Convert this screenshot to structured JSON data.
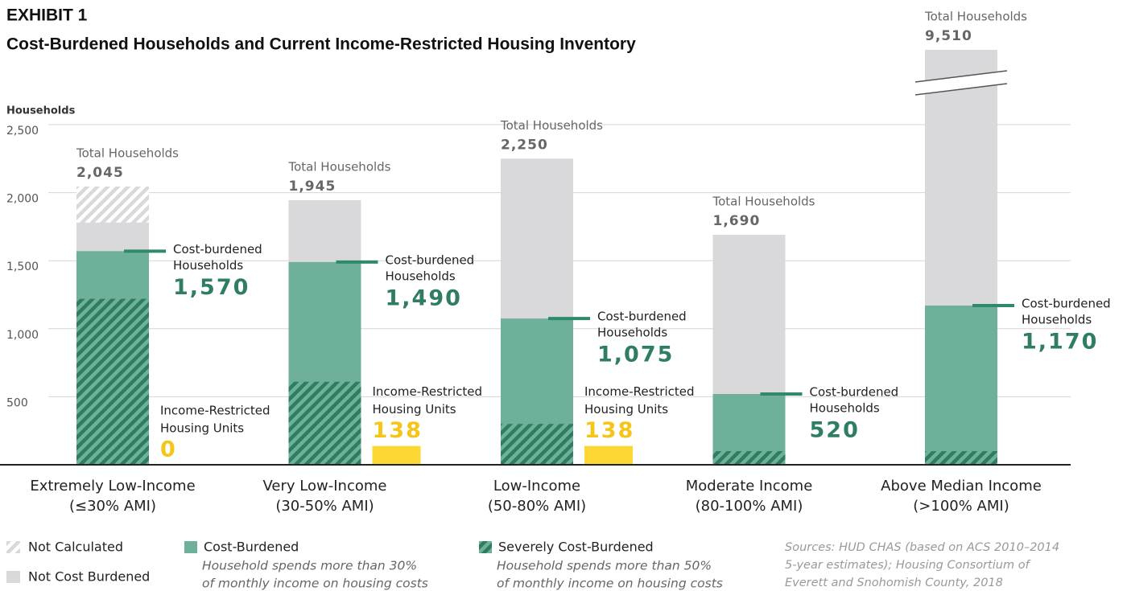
{
  "chart_data": {
    "type": "bar",
    "exhibit": "EXHIBIT 1",
    "title": "Cost-Burdened Households and Current Income-Restricted Housing Inventory",
    "y_label": "Households",
    "categories": [
      "Extremely Low-Income",
      "Very Low-Income",
      "Low-Income",
      "Moderate Income",
      "Above Median Income"
    ],
    "category_notes": [
      "(≤30% AMI)",
      "(30-50% AMI)",
      "(50-80% AMI)",
      "(80-100% AMI)",
      "(>100% AMI)"
    ],
    "ylim": [
      0,
      2500
    ],
    "yticks": [
      {
        "value": 500,
        "label": "500"
      },
      {
        "value": 1000,
        "label": "1,000"
      },
      {
        "value": 1500,
        "label": "1,500"
      },
      {
        "value": 2000,
        "label": "2,000"
      },
      {
        "value": 2500,
        "label": "2,500"
      }
    ],
    "grid": true,
    "total_label": "Total Households",
    "cost_burdened_label": [
      "Cost-burdened",
      "Households"
    ],
    "series": [
      {
        "name": "Not Cost Burdened",
        "color": "#d9d9db",
        "values": [
          2045,
          1945,
          2250,
          1690,
          9510
        ],
        "value_labels": [
          "2,045",
          "1,945",
          "2,250",
          "1,690",
          "9,510"
        ]
      },
      {
        "name": "Not Calculated",
        "color": "#d9d9db",
        "hatch": "#ffffff",
        "values": [
          265,
          null,
          null,
          null,
          null
        ]
      },
      {
        "name": "Cost-Burdened",
        "color": "#6fb09a",
        "marker_color": "#2f8a6b",
        "label_color": "#2f7d62",
        "values": [
          1570,
          1490,
          1075,
          520,
          1170
        ],
        "value_labels": [
          "1,570",
          "1,490",
          "1,075",
          "520",
          "1,170"
        ],
        "description": [
          "Household spends more than 30%",
          "of monthly income on housing costs"
        ]
      },
      {
        "name": "Severely Cost-Burdened",
        "color": "#6fb09a",
        "hatch": "#2e7d5f",
        "values": [
          1220,
          610,
          300,
          100,
          100
        ],
        "description": [
          "Household spends more than 50%",
          "of monthly income on housing costs"
        ]
      }
    ],
    "income_restricted": {
      "label": [
        "Income-Restricted",
        "Housing Units"
      ],
      "color": "#fdd835",
      "label_color": "#f5c518",
      "values": [
        0,
        138,
        138,
        null,
        null
      ]
    },
    "sources": [
      "Sources: HUD CHAS (based on ACS 2010–2014",
      "5-year estimates); Housing Consortium of",
      "Everett and Snohomish County, 2018"
    ]
  }
}
